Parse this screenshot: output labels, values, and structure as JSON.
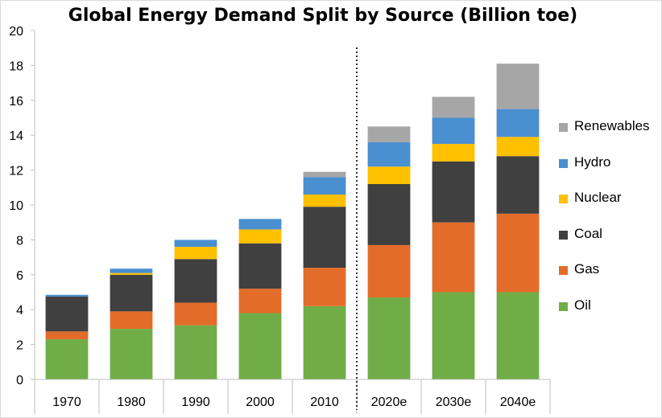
{
  "chart_data": {
    "type": "bar",
    "stacked": true,
    "title": "Global Energy Demand Split by Source (Billion toe)",
    "xlabel": "",
    "ylabel": "",
    "ylim": [
      0,
      20
    ],
    "yticks": [
      0,
      2,
      4,
      6,
      8,
      10,
      12,
      14,
      16,
      18,
      20
    ],
    "categories": [
      "1970",
      "1980",
      "1990",
      "2000",
      "2010",
      "2020e",
      "2030e",
      "2040e"
    ],
    "divider_after_category": "2010",
    "legend_position": "right",
    "grid": false,
    "series": [
      {
        "name": "Oil",
        "color": "#70ad47",
        "values": [
          2.3,
          2.9,
          3.1,
          3.8,
          4.2,
          4.7,
          5.0,
          5.0
        ]
      },
      {
        "name": "Gas",
        "color": "#e46c2a",
        "values": [
          0.45,
          1.0,
          1.3,
          1.4,
          2.2,
          3.0,
          4.0,
          4.5
        ]
      },
      {
        "name": "Coal",
        "color": "#404040",
        "values": [
          2.0,
          2.1,
          2.5,
          2.6,
          3.5,
          3.5,
          3.5,
          3.3
        ]
      },
      {
        "name": "Nuclear",
        "color": "#ffc000",
        "values": [
          0.0,
          0.1,
          0.7,
          0.8,
          0.7,
          1.0,
          1.0,
          1.1
        ]
      },
      {
        "name": "Hydro",
        "color": "#4a8fd0",
        "values": [
          0.1,
          0.25,
          0.4,
          0.6,
          1.0,
          1.4,
          1.5,
          1.6
        ]
      },
      {
        "name": "Renewables",
        "color": "#a6a6a6",
        "values": [
          0.0,
          0.0,
          0.0,
          0.0,
          0.3,
          0.9,
          1.2,
          2.6
        ]
      }
    ]
  }
}
